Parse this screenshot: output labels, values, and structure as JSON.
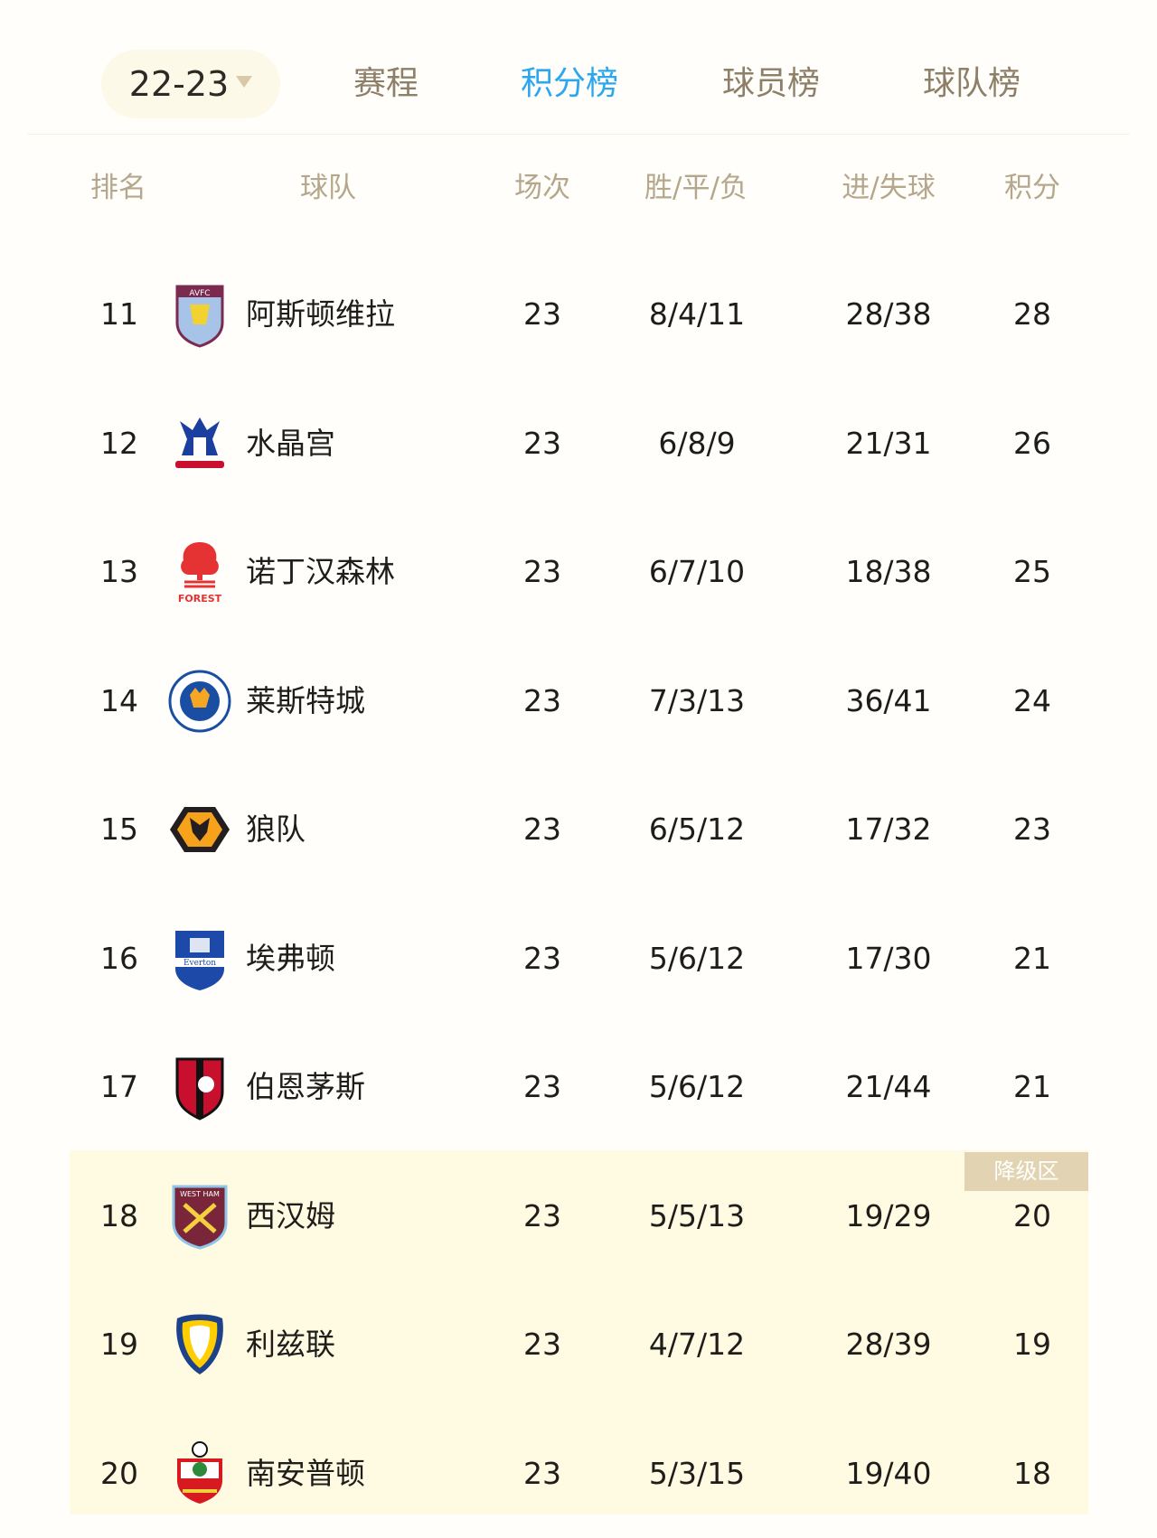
{
  "nav": {
    "season": "22-23",
    "tabs": [
      {
        "label": "赛程",
        "active": false
      },
      {
        "label": "积分榜",
        "active": true
      },
      {
        "label": "球员榜",
        "active": false
      },
      {
        "label": "球队榜",
        "active": false
      }
    ],
    "active_color": "#2ba7f0"
  },
  "table": {
    "headers": [
      "排名",
      "球队",
      "场次",
      "胜/平/负",
      "进/失球",
      "积分"
    ],
    "relegation_label": "降级区",
    "rows": [
      {
        "rank": "11",
        "team": "阿斯顿维拉",
        "logo": "aston-villa-crest",
        "played": "23",
        "wdl": "8/4/11",
        "goals": "28/38",
        "points": "28"
      },
      {
        "rank": "12",
        "team": "水晶宫",
        "logo": "crystal-palace-crest",
        "played": "23",
        "wdl": "6/8/9",
        "goals": "21/31",
        "points": "26"
      },
      {
        "rank": "13",
        "team": "诺丁汉森林",
        "logo": "nottingham-forest-crest",
        "played": "23",
        "wdl": "6/7/10",
        "goals": "18/38",
        "points": "25"
      },
      {
        "rank": "14",
        "team": "莱斯特城",
        "logo": "leicester-city-crest",
        "played": "23",
        "wdl": "7/3/13",
        "goals": "36/41",
        "points": "24"
      },
      {
        "rank": "15",
        "team": "狼队",
        "logo": "wolves-crest",
        "played": "23",
        "wdl": "6/5/12",
        "goals": "17/32",
        "points": "23"
      },
      {
        "rank": "16",
        "team": "埃弗顿",
        "logo": "everton-crest",
        "played": "23",
        "wdl": "5/6/12",
        "goals": "17/30",
        "points": "21"
      },
      {
        "rank": "17",
        "team": "伯恩茅斯",
        "logo": "bournemouth-crest",
        "played": "23",
        "wdl": "5/6/12",
        "goals": "21/44",
        "points": "21"
      },
      {
        "rank": "18",
        "team": "西汉姆",
        "logo": "west-ham-crest",
        "played": "23",
        "wdl": "5/5/13",
        "goals": "19/29",
        "points": "20"
      },
      {
        "rank": "19",
        "team": "利兹联",
        "logo": "leeds-united-crest",
        "played": "23",
        "wdl": "4/7/12",
        "goals": "28/39",
        "points": "19"
      },
      {
        "rank": "20",
        "team": "南安普顿",
        "logo": "southampton-crest",
        "played": "23",
        "wdl": "5/3/15",
        "goals": "19/40",
        "points": "18"
      }
    ]
  }
}
